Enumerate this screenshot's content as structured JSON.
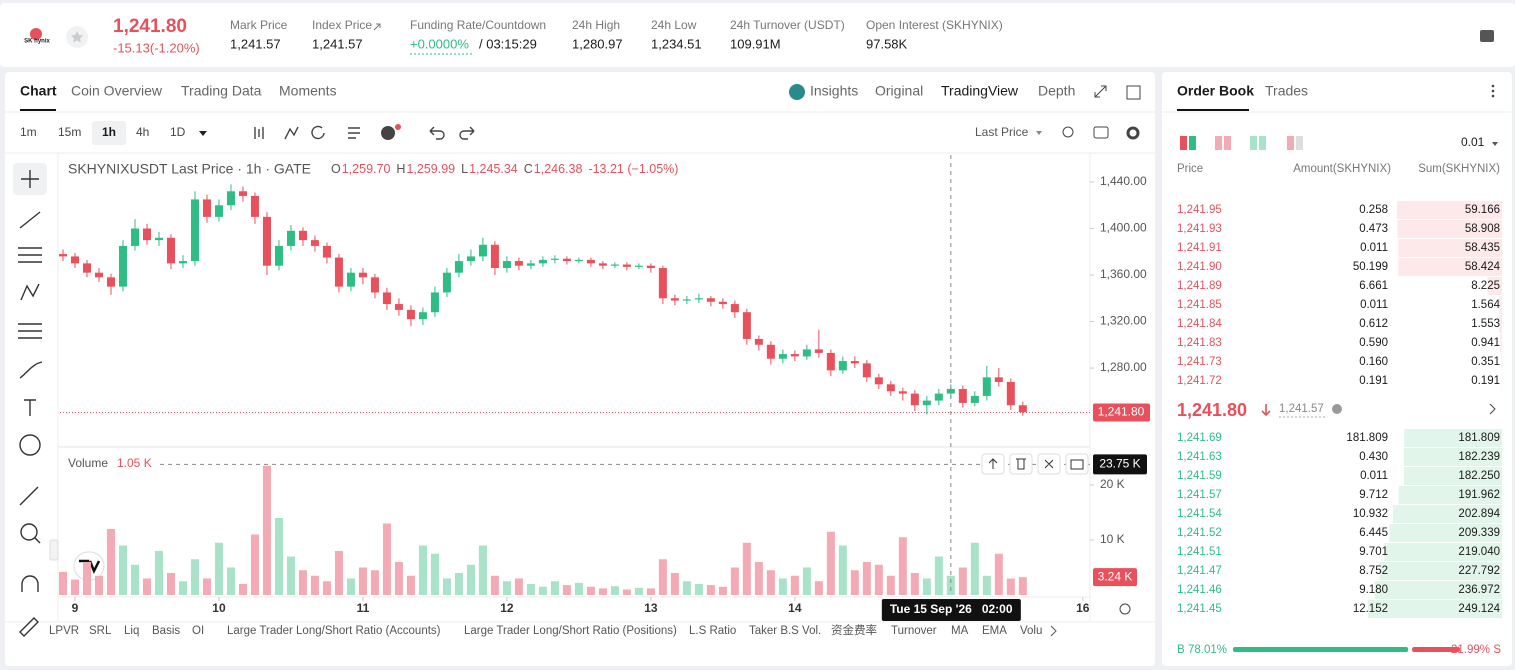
{
  "header": {
    "logo_text": "SK hynix",
    "last_price": "1,241.80",
    "change": "-15.13(-1.20%)",
    "stats": [
      {
        "label": "Mark Price",
        "value": "1,241.57"
      },
      {
        "label": "Index Price",
        "value": "1,241.57"
      },
      {
        "label": "Funding Rate/Countdown",
        "value": "+0.0000%",
        "extra": "/ 03:15:29"
      },
      {
        "label": "24h High",
        "value": "1,280.97"
      },
      {
        "label": "24h Low",
        "value": "1,234.51"
      },
      {
        "label": "24h Turnover (USDT)",
        "value": "109.91M"
      },
      {
        "label": "Open Interest (SKHYNIX)",
        "value": "97.58K"
      }
    ]
  },
  "chart_tabs": [
    "Chart",
    "Coin Overview",
    "Trading Data",
    "Moments"
  ],
  "view_tabs": [
    "Insights",
    "Original",
    "TradingView",
    "Depth"
  ],
  "intervals": [
    "1m",
    "15m",
    "1h",
    "4h",
    "1D"
  ],
  "price_type": "Last Price",
  "chart_data": {
    "type": "candlestick",
    "legend": "SKHYNIXUSDT Last Price · 1h · GATE",
    "ohlc_legend": [
      "O",
      "1,259.70",
      "H",
      "1,259.99",
      "L",
      "1,245.34",
      "C",
      "1,246.38",
      "-13.21 (−1.05%)"
    ],
    "x": [
      -2,
      0,
      2,
      4,
      6,
      8,
      10,
      12,
      14,
      16,
      18,
      20,
      22,
      24,
      26,
      28,
      30,
      32,
      34,
      36,
      38,
      40,
      42,
      44,
      46,
      48,
      50,
      52,
      54,
      56,
      58,
      60,
      62,
      64,
      66,
      68,
      70,
      72,
      74,
      76,
      78,
      80,
      82,
      84,
      86,
      88,
      90,
      92,
      94,
      96,
      98,
      100,
      102,
      104,
      106,
      108,
      110,
      112,
      114,
      116,
      118,
      120,
      122,
      124,
      126,
      128,
      130,
      132,
      134,
      136,
      138,
      140,
      142,
      144,
      146,
      148,
      150,
      152,
      154,
      156,
      158
    ],
    "open": [
      1378,
      1376,
      1370,
      1362,
      1358,
      1350,
      1385,
      1400,
      1390,
      1392,
      1370,
      1372,
      1425,
      1410,
      1420,
      1432,
      1428,
      1410,
      1368,
      1385,
      1398,
      1390,
      1385,
      1375,
      1350,
      1362,
      1358,
      1345,
      1335,
      1330,
      1322,
      1328,
      1345,
      1362,
      1372,
      1376,
      1386,
      1366,
      1372,
      1368,
      1370,
      1373,
      1374,
      1372,
      1373,
      1370,
      1368,
      1369,
      1367,
      1368,
      1366,
      1340,
      1338,
      1339,
      1340,
      1337,
      1335,
      1328,
      1305,
      1300,
      1288,
      1292,
      1290,
      1296,
      1293,
      1278,
      1286,
      1284,
      1272,
      1266,
      1260,
      1258,
      1248,
      1252,
      1258,
      1262,
      1250,
      1256,
      1272,
      1268,
      1248
    ],
    "high": [
      1382,
      1379,
      1373,
      1366,
      1361,
      1390,
      1408,
      1404,
      1397,
      1395,
      1377,
      1432,
      1429,
      1425,
      1438,
      1436,
      1431,
      1414,
      1390,
      1403,
      1401,
      1394,
      1388,
      1378,
      1366,
      1366,
      1361,
      1349,
      1340,
      1334,
      1332,
      1350,
      1366,
      1378,
      1382,
      1392,
      1389,
      1376,
      1375,
      1373,
      1376,
      1377,
      1376,
      1375,
      1375,
      1372,
      1371,
      1371,
      1370,
      1370,
      1368,
      1343,
      1342,
      1344,
      1342,
      1340,
      1338,
      1331,
      1308,
      1303,
      1296,
      1295,
      1300,
      1313,
      1296,
      1290,
      1290,
      1287,
      1275,
      1269,
      1263,
      1261,
      1256,
      1262,
      1266,
      1265,
      1260,
      1282,
      1280,
      1271,
      1251
    ],
    "low": [
      1372,
      1366,
      1358,
      1354,
      1343,
      1346,
      1381,
      1386,
      1385,
      1365,
      1366,
      1368,
      1405,
      1406,
      1416,
      1423,
      1404,
      1360,
      1364,
      1381,
      1385,
      1380,
      1370,
      1345,
      1346,
      1352,
      1340,
      1330,
      1325,
      1316,
      1317,
      1324,
      1341,
      1358,
      1368,
      1372,
      1360,
      1362,
      1364,
      1365,
      1367,
      1370,
      1369,
      1370,
      1367,
      1365,
      1366,
      1364,
      1365,
      1362,
      1335,
      1334,
      1335,
      1336,
      1333,
      1331,
      1323,
      1300,
      1295,
      1283,
      1284,
      1286,
      1287,
      1289,
      1273,
      1275,
      1280,
      1268,
      1262,
      1256,
      1252,
      1243,
      1240,
      1248,
      1254,
      1246,
      1247,
      1252,
      1264,
      1244,
      1239
    ],
    "close": [
      1376,
      1370,
      1362,
      1358,
      1350,
      1385,
      1400,
      1390,
      1392,
      1370,
      1372,
      1425,
      1410,
      1420,
      1432,
      1428,
      1410,
      1368,
      1385,
      1398,
      1390,
      1385,
      1375,
      1350,
      1362,
      1358,
      1345,
      1335,
      1330,
      1322,
      1328,
      1345,
      1362,
      1372,
      1376,
      1386,
      1366,
      1372,
      1368,
      1370,
      1373,
      1374,
      1372,
      1373,
      1370,
      1368,
      1369,
      1367,
      1368,
      1366,
      1340,
      1338,
      1339,
      1340,
      1337,
      1335,
      1328,
      1305,
      1300,
      1288,
      1292,
      1290,
      1296,
      1293,
      1278,
      1286,
      1284,
      1272,
      1266,
      1260,
      1258,
      1248,
      1252,
      1258,
      1262,
      1250,
      1256,
      1272,
      1268,
      1248,
      1242
    ],
    "volume": [
      4200,
      2800,
      6000,
      3500,
      12000,
      9000,
      5500,
      3000,
      8000,
      4000,
      2500,
      6500,
      3000,
      9500,
      5000,
      2000,
      11000,
      23500,
      14000,
      7000,
      4500,
      3500,
      2500,
      8000,
      3000,
      5000,
      4500,
      13000,
      6000,
      3500,
      9000,
      7500,
      3000,
      4000,
      5500,
      9000,
      3500,
      2500,
      3000,
      2000,
      1500,
      2500,
      1800,
      2200,
      1500,
      1200,
      1600,
      1000,
      1300,
      1200,
      6500,
      4000,
      2500,
      2000,
      1800,
      1500,
      5000,
      9500,
      6000,
      4500,
      3000,
      3500,
      5000,
      2500,
      11500,
      9000,
      4500,
      6000,
      5500,
      3500,
      10500,
      4000,
      3000,
      7000,
      3500,
      5000,
      9500,
      3500,
      7500,
      3000,
      3240
    ],
    "xlim": [
      -2.5,
      169.2
    ],
    "xticks": [
      {
        "value": 0,
        "label": "9"
      },
      {
        "value": 24,
        "label": "10"
      },
      {
        "value": 48,
        "label": "11"
      },
      {
        "value": 72,
        "label": "12"
      },
      {
        "value": 96,
        "label": "13"
      },
      {
        "value": 120,
        "label": "14"
      },
      {
        "value": 168,
        "label": "16"
      }
    ],
    "ylim": [
      1213.8,
      1463.2
    ],
    "yticks": [
      {
        "value": 1280,
        "label": "1,280.00"
      },
      {
        "value": 1320,
        "label": "1,320.00"
      },
      {
        "value": 1360,
        "label": "1,360.00"
      },
      {
        "value": 1400,
        "label": "1,400.00"
      },
      {
        "value": 1440,
        "label": "1,440.00"
      }
    ],
    "last_price_line": {
      "value": 1241.8,
      "label": "1,241.80"
    },
    "volume_label": "Volume",
    "volume_value": "1.05 K",
    "vol_ylim": [
      0,
      25000
    ],
    "vol_yticks": [
      {
        "value": 10000,
        "label": "10 K"
      },
      {
        "value": 20000,
        "label": "20 K"
      }
    ],
    "vol_crosshair": {
      "value": 23750,
      "label": "23.75 K"
    },
    "vol_last": {
      "value": 3240,
      "label": "3.24 K"
    },
    "crosshair_time": {
      "value": 146,
      "label": "Tue 15 Sep '26"
    },
    "crosshair_clock": "02:00",
    "grid": false,
    "up_color": "#2ebd85",
    "down_color": "#e8505b",
    "vol_up_color": "#a8e2c8",
    "vol_down_color": "#f4aab4"
  },
  "indicators": [
    "LPVR",
    "SRL",
    "Liq",
    "Basis",
    "OI",
    "Large Trader Long/Short Ratio (Accounts)",
    "Large Trader Long/Short Ratio (Positions)",
    "L.S Ratio",
    "Taker B.S Vol.",
    "资金费率",
    "Turnover",
    "MA",
    "EMA",
    "Volu"
  ],
  "order_book": {
    "tabs": [
      "Order Book",
      "Trades"
    ],
    "precision": "0.01",
    "columns": [
      "Price",
      "Amount(SKHYNIX)",
      "Sum(SKHYNIX)"
    ],
    "asks": [
      [
        "1,241.95",
        "0.258",
        "59.166"
      ],
      [
        "1,241.93",
        "0.473",
        "58.908"
      ],
      [
        "1,241.91",
        "0.011",
        "58.435"
      ],
      [
        "1,241.90",
        "50.199",
        "58.424"
      ],
      [
        "1,241.89",
        "6.661",
        "8.225"
      ],
      [
        "1,241.85",
        "0.011",
        "1.564"
      ],
      [
        "1,241.84",
        "0.612",
        "1.553"
      ],
      [
        "1,241.83",
        "0.590",
        "0.941"
      ],
      [
        "1,241.73",
        "0.160",
        "0.351"
      ],
      [
        "1,241.72",
        "0.191",
        "0.191"
      ]
    ],
    "mid_price": "1,241.80",
    "mark_price": "1,241.57",
    "bids": [
      [
        "1,241.69",
        "181.809",
        "181.809"
      ],
      [
        "1,241.63",
        "0.430",
        "182.239"
      ],
      [
        "1,241.59",
        "0.011",
        "182.250"
      ],
      [
        "1,241.57",
        "9.712",
        "191.962"
      ],
      [
        "1,241.54",
        "10.932",
        "202.894"
      ],
      [
        "1,241.52",
        "6.445",
        "209.339"
      ],
      [
        "1,241.51",
        "9.701",
        "219.040"
      ],
      [
        "1,241.47",
        "8.752",
        "227.792"
      ],
      [
        "1,241.46",
        "9.180",
        "236.972"
      ],
      [
        "1,241.45",
        "12.152",
        "249.124"
      ]
    ],
    "buy": {
      "label": "B",
      "value": 78.01,
      "value_label": "78.01%"
    },
    "sell": {
      "label": "S",
      "value": 21.99,
      "value_label": "21.99%"
    }
  }
}
